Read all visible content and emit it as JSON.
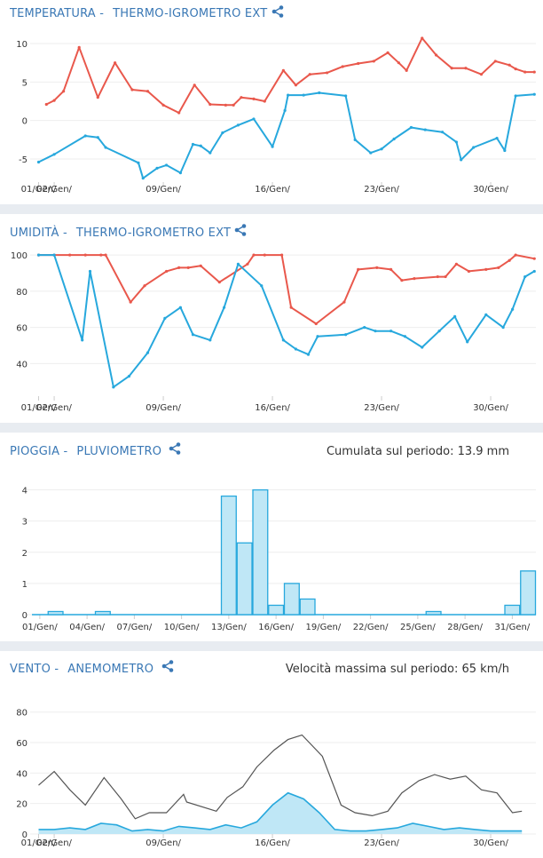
{
  "colors": {
    "header": "#3a78b5",
    "max_line": "#e9584c",
    "min_line": "#27a8dd",
    "bar_fill": "#bfe7f6",
    "bar_stroke": "#27a8dd",
    "wind_max": "#555555",
    "wind_avg_fill": "#bfe7f6",
    "grid": "#eeeeee",
    "separator": "#e8ecf1"
  },
  "icons": {
    "share": "share-icon"
  },
  "panels": [
    {
      "id": "temperatura",
      "title": "TEMPERATURA -",
      "device": "THERMO-IGROMETRO EXT",
      "note": ""
    },
    {
      "id": "umidita",
      "title": "UMIDITÀ -",
      "device": "THERMO-IGROMETRO EXT",
      "note": ""
    },
    {
      "id": "pioggia",
      "title": "PIOGGIA -",
      "device": "PLUVIOMETRO",
      "note": "Cumulata sul periodo: 13.9 mm"
    },
    {
      "id": "vento",
      "title": "VENTO -",
      "device": "ANEMOMETRO",
      "note": "Velocità massima sul periodo: 65 km/h"
    }
  ],
  "chart_data": [
    {
      "type": "line",
      "x_tick_labels": [
        "01/Gen/",
        "02/Gen/",
        "09/Gen/",
        "16/Gen/",
        "23/Gen/",
        "30/Gen/"
      ],
      "x_tick_days": [
        1,
        2,
        9,
        16,
        23,
        30
      ],
      "xlim": [
        0.8,
        32.9
      ],
      "ylim": [
        -8,
        11.5
      ],
      "y_ticks": [
        -5,
        0,
        5,
        10
      ],
      "grid": true,
      "series": [
        {
          "role": "max",
          "color": "#e9584c",
          "points": [
            [
              1.5,
              2.1
            ],
            [
              2,
              2.6
            ],
            [
              2.6,
              3.8
            ],
            [
              3.6,
              9.5
            ],
            [
              4.8,
              3.0
            ],
            [
              5.9,
              7.5
            ],
            [
              7.0,
              4.0
            ],
            [
              8.0,
              3.8
            ],
            [
              9.0,
              2.0
            ],
            [
              10.0,
              1.0
            ],
            [
              11.0,
              4.6
            ],
            [
              12.0,
              2.1
            ],
            [
              13.0,
              2.0
            ],
            [
              13.5,
              2.0
            ],
            [
              14.0,
              3.0
            ],
            [
              14.8,
              2.8
            ],
            [
              15.5,
              2.5
            ],
            [
              16.7,
              6.5
            ],
            [
              17.5,
              4.6
            ],
            [
              18.4,
              6.0
            ],
            [
              19.5,
              6.2
            ],
            [
              20.5,
              7.0
            ],
            [
              21.5,
              7.4
            ],
            [
              22.5,
              7.7
            ],
            [
              23.4,
              8.8
            ],
            [
              24.1,
              7.5
            ],
            [
              24.6,
              6.5
            ],
            [
              25.6,
              10.7
            ],
            [
              26.5,
              8.5
            ],
            [
              27.5,
              6.8
            ],
            [
              28.4,
              6.8
            ],
            [
              29.4,
              6.0
            ],
            [
              30.3,
              7.7
            ],
            [
              31.2,
              7.2
            ],
            [
              31.6,
              6.7
            ],
            [
              32.2,
              6.3
            ],
            [
              32.8,
              6.3
            ]
          ]
        },
        {
          "role": "min",
          "color": "#27a8dd",
          "points": [
            [
              1,
              -5.4
            ],
            [
              2,
              -4.4
            ],
            [
              4,
              -2.0
            ],
            [
              4.8,
              -2.2
            ],
            [
              5.3,
              -3.5
            ],
            [
              7.4,
              -5.5
            ],
            [
              7.7,
              -7.5
            ],
            [
              8.6,
              -6.2
            ],
            [
              9.2,
              -5.8
            ],
            [
              10.1,
              -6.8
            ],
            [
              10.9,
              -3.1
            ],
            [
              11.4,
              -3.3
            ],
            [
              12.0,
              -4.2
            ],
            [
              12.8,
              -1.6
            ],
            [
              13.8,
              -0.6
            ],
            [
              14.8,
              0.2
            ],
            [
              16.0,
              -3.4
            ],
            [
              16.8,
              1.3
            ],
            [
              17.0,
              3.3
            ],
            [
              18.0,
              3.3
            ],
            [
              19.0,
              3.6
            ],
            [
              20.7,
              3.2
            ],
            [
              21.3,
              -2.5
            ],
            [
              22.3,
              -4.2
            ],
            [
              23.0,
              -3.7
            ],
            [
              23.8,
              -2.4
            ],
            [
              24.9,
              -0.9
            ],
            [
              25.8,
              -1.2
            ],
            [
              26.9,
              -1.5
            ],
            [
              27.8,
              -2.8
            ],
            [
              28.1,
              -5.1
            ],
            [
              28.9,
              -3.5
            ],
            [
              30.4,
              -2.3
            ],
            [
              30.9,
              -3.9
            ],
            [
              31.6,
              3.2
            ],
            [
              32.8,
              3.4
            ]
          ]
        }
      ]
    },
    {
      "type": "line",
      "x_tick_labels": [
        "01/Gen/",
        "02/Gen/",
        "09/Gen/",
        "16/Gen/",
        "23/Gen/",
        "30/Gen/"
      ],
      "x_tick_days": [
        1,
        2,
        9,
        16,
        23,
        30
      ],
      "xlim": [
        0.8,
        32.9
      ],
      "ylim": [
        22,
        103
      ],
      "y_ticks": [
        40,
        60,
        80,
        100
      ],
      "grid": true,
      "series": [
        {
          "role": "max",
          "color": "#e9584c",
          "points": [
            [
              1,
              100
            ],
            [
              2,
              100
            ],
            [
              3,
              100
            ],
            [
              4,
              100
            ],
            [
              5,
              100
            ],
            [
              5.3,
              100
            ],
            [
              6.9,
              74
            ],
            [
              7.8,
              83
            ],
            [
              9.2,
              91
            ],
            [
              10.0,
              93
            ],
            [
              10.6,
              93
            ],
            [
              11.4,
              94
            ],
            [
              12.6,
              85
            ],
            [
              14.4,
              95
            ],
            [
              14.8,
              100
            ],
            [
              15.5,
              100
            ],
            [
              16.6,
              100
            ],
            [
              17.2,
              71
            ],
            [
              18.8,
              62
            ],
            [
              20.6,
              74
            ],
            [
              21.5,
              92
            ],
            [
              22.7,
              93
            ],
            [
              23.6,
              92
            ],
            [
              24.3,
              86
            ],
            [
              25.1,
              87
            ],
            [
              26.6,
              88
            ],
            [
              27.1,
              88
            ],
            [
              27.8,
              95
            ],
            [
              28.6,
              91
            ],
            [
              29.7,
              92
            ],
            [
              30.5,
              93
            ],
            [
              31.2,
              97
            ],
            [
              31.6,
              100
            ],
            [
              32.8,
              98
            ]
          ]
        },
        {
          "role": "min",
          "color": "#27a8dd",
          "points": [
            [
              1,
              100
            ],
            [
              2,
              100
            ],
            [
              3.8,
              53
            ],
            [
              4.3,
              91
            ],
            [
              5.8,
              27
            ],
            [
              6.8,
              33
            ],
            [
              8.0,
              46
            ],
            [
              9.1,
              65
            ],
            [
              10.1,
              71
            ],
            [
              10.9,
              56
            ],
            [
              12.0,
              53
            ],
            [
              12.9,
              71
            ],
            [
              13.8,
              95
            ],
            [
              15.3,
              83
            ],
            [
              16.7,
              53
            ],
            [
              17.5,
              48
            ],
            [
              18.3,
              45
            ],
            [
              18.9,
              55
            ],
            [
              20.7,
              56
            ],
            [
              21.9,
              60
            ],
            [
              22.6,
              58
            ],
            [
              23.6,
              58
            ],
            [
              24.5,
              55
            ],
            [
              25.6,
              49
            ],
            [
              26.7,
              58
            ],
            [
              27.7,
              66
            ],
            [
              28.5,
              52
            ],
            [
              29.7,
              67
            ],
            [
              30.8,
              60
            ],
            [
              31.4,
              70
            ],
            [
              32.2,
              88
            ],
            [
              32.8,
              91
            ]
          ]
        }
      ]
    },
    {
      "type": "bar",
      "x_tick_labels": [
        "01/Gen/",
        "04/Gen/",
        "07/Gen/",
        "10/Gen/",
        "13/Gen/",
        "16/Gen/",
        "19/Gen/",
        "22/Gen/",
        "25/Gen/",
        "28/Gen/",
        "31/Gen/"
      ],
      "x_tick_days": [
        1,
        4,
        7,
        10,
        13,
        16,
        19,
        22,
        25,
        28,
        31
      ],
      "xlim": [
        0,
        32
      ],
      "ylim": [
        0,
        4.3
      ],
      "y_ticks": [
        0,
        1,
        2,
        3,
        4
      ],
      "grid": true,
      "categories": [
        "01",
        "02",
        "03",
        "04",
        "05",
        "06",
        "07",
        "08",
        "09",
        "10",
        "11",
        "12",
        "13",
        "14",
        "15",
        "16",
        "17",
        "18",
        "19",
        "20",
        "21",
        "22",
        "23",
        "24",
        "25",
        "26",
        "27",
        "28",
        "29",
        "30",
        "31",
        "32"
      ],
      "values": [
        0,
        0.1,
        0,
        0,
        0.1,
        0,
        0,
        0,
        0,
        0,
        0,
        0,
        3.8,
        2.3,
        4.0,
        0.3,
        1.0,
        0.5,
        0,
        0,
        0,
        0,
        0,
        0,
        0,
        0.1,
        0,
        0,
        0,
        0,
        0.3,
        1.4
      ]
    },
    {
      "type": "area",
      "x_tick_labels": [
        "01/Gen/",
        "02/Gen/",
        "09/Gen/",
        "16/Gen/",
        "23/Gen/",
        "30/Gen/"
      ],
      "x_tick_days": [
        1,
        2,
        9,
        16,
        23,
        30
      ],
      "xlim": [
        0.8,
        32.9
      ],
      "ylim": [
        0,
        88
      ],
      "y_ticks": [
        0,
        20,
        40,
        60,
        80
      ],
      "grid": true,
      "series": [
        {
          "role": "max",
          "color": "#555555",
          "points": [
            [
              1,
              32
            ],
            [
              2,
              41
            ],
            [
              3,
              29
            ],
            [
              4,
              19
            ],
            [
              5.2,
              37
            ],
            [
              6.3,
              23
            ],
            [
              7.2,
              10
            ],
            [
              8.1,
              14
            ],
            [
              9.2,
              14
            ],
            [
              10.3,
              26
            ],
            [
              10.5,
              21
            ],
            [
              12.4,
              15
            ],
            [
              13.1,
              24
            ],
            [
              14.1,
              31
            ],
            [
              15.0,
              44
            ],
            [
              16.1,
              55
            ],
            [
              17.0,
              62
            ],
            [
              17.9,
              65
            ],
            [
              19.2,
              51
            ],
            [
              20.4,
              19
            ],
            [
              21.3,
              14
            ],
            [
              22.4,
              12
            ],
            [
              23.4,
              15
            ],
            [
              24.3,
              27
            ],
            [
              25.4,
              35
            ],
            [
              26.4,
              39
            ],
            [
              27.4,
              36
            ],
            [
              28.4,
              38
            ],
            [
              29.4,
              29
            ],
            [
              30.4,
              27
            ],
            [
              31.4,
              14
            ],
            [
              32.0,
              15
            ]
          ]
        },
        {
          "role": "avg",
          "color": "#27a8dd",
          "points": [
            [
              1,
              3
            ],
            [
              2,
              3
            ],
            [
              3,
              4
            ],
            [
              4,
              3
            ],
            [
              5,
              7
            ],
            [
              6,
              6
            ],
            [
              7,
              2
            ],
            [
              8,
              3
            ],
            [
              9,
              2
            ],
            [
              10,
              5
            ],
            [
              11,
              4
            ],
            [
              12,
              3
            ],
            [
              13,
              6
            ],
            [
              14,
              4
            ],
            [
              15,
              8
            ],
            [
              16,
              19
            ],
            [
              17,
              27
            ],
            [
              18,
              23
            ],
            [
              19,
              14
            ],
            [
              20,
              3
            ],
            [
              21,
              2
            ],
            [
              22,
              2
            ],
            [
              23,
              3
            ],
            [
              24,
              4
            ],
            [
              25,
              7
            ],
            [
              26,
              5
            ],
            [
              27,
              3
            ],
            [
              28,
              4
            ],
            [
              29,
              3
            ],
            [
              30,
              2
            ],
            [
              31,
              2
            ],
            [
              32,
              2
            ]
          ]
        }
      ]
    }
  ]
}
